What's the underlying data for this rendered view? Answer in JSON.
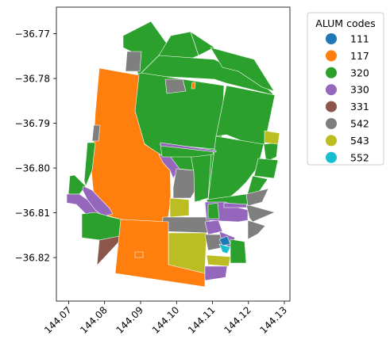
{
  "chart_data": {
    "type": "map",
    "legend": {
      "title": "ALUM codes",
      "entries": [
        {
          "label": "111",
          "color": "#1f77b4"
        },
        {
          "label": "117",
          "color": "#ff7f0e"
        },
        {
          "label": "320",
          "color": "#2ca02c"
        },
        {
          "label": "330",
          "color": "#9467bd"
        },
        {
          "label": "331",
          "color": "#8c564b"
        },
        {
          "label": "542",
          "color": "#7f7f7f"
        },
        {
          "label": "543",
          "color": "#bcbd22"
        },
        {
          "label": "552",
          "color": "#17becf"
        }
      ]
    },
    "x_ticks": [
      "144.07",
      "144.08",
      "144.09",
      "144.10",
      "144.11",
      "144.12",
      "144.13"
    ],
    "y_ticks": [
      "−36.77",
      "−36.78",
      "−36.79",
      "−36.80",
      "−36.81",
      "−36.82"
    ],
    "xlim": [
      144.066,
      144.1295
    ],
    "ylim": [
      -36.8295,
      -36.7642
    ]
  }
}
